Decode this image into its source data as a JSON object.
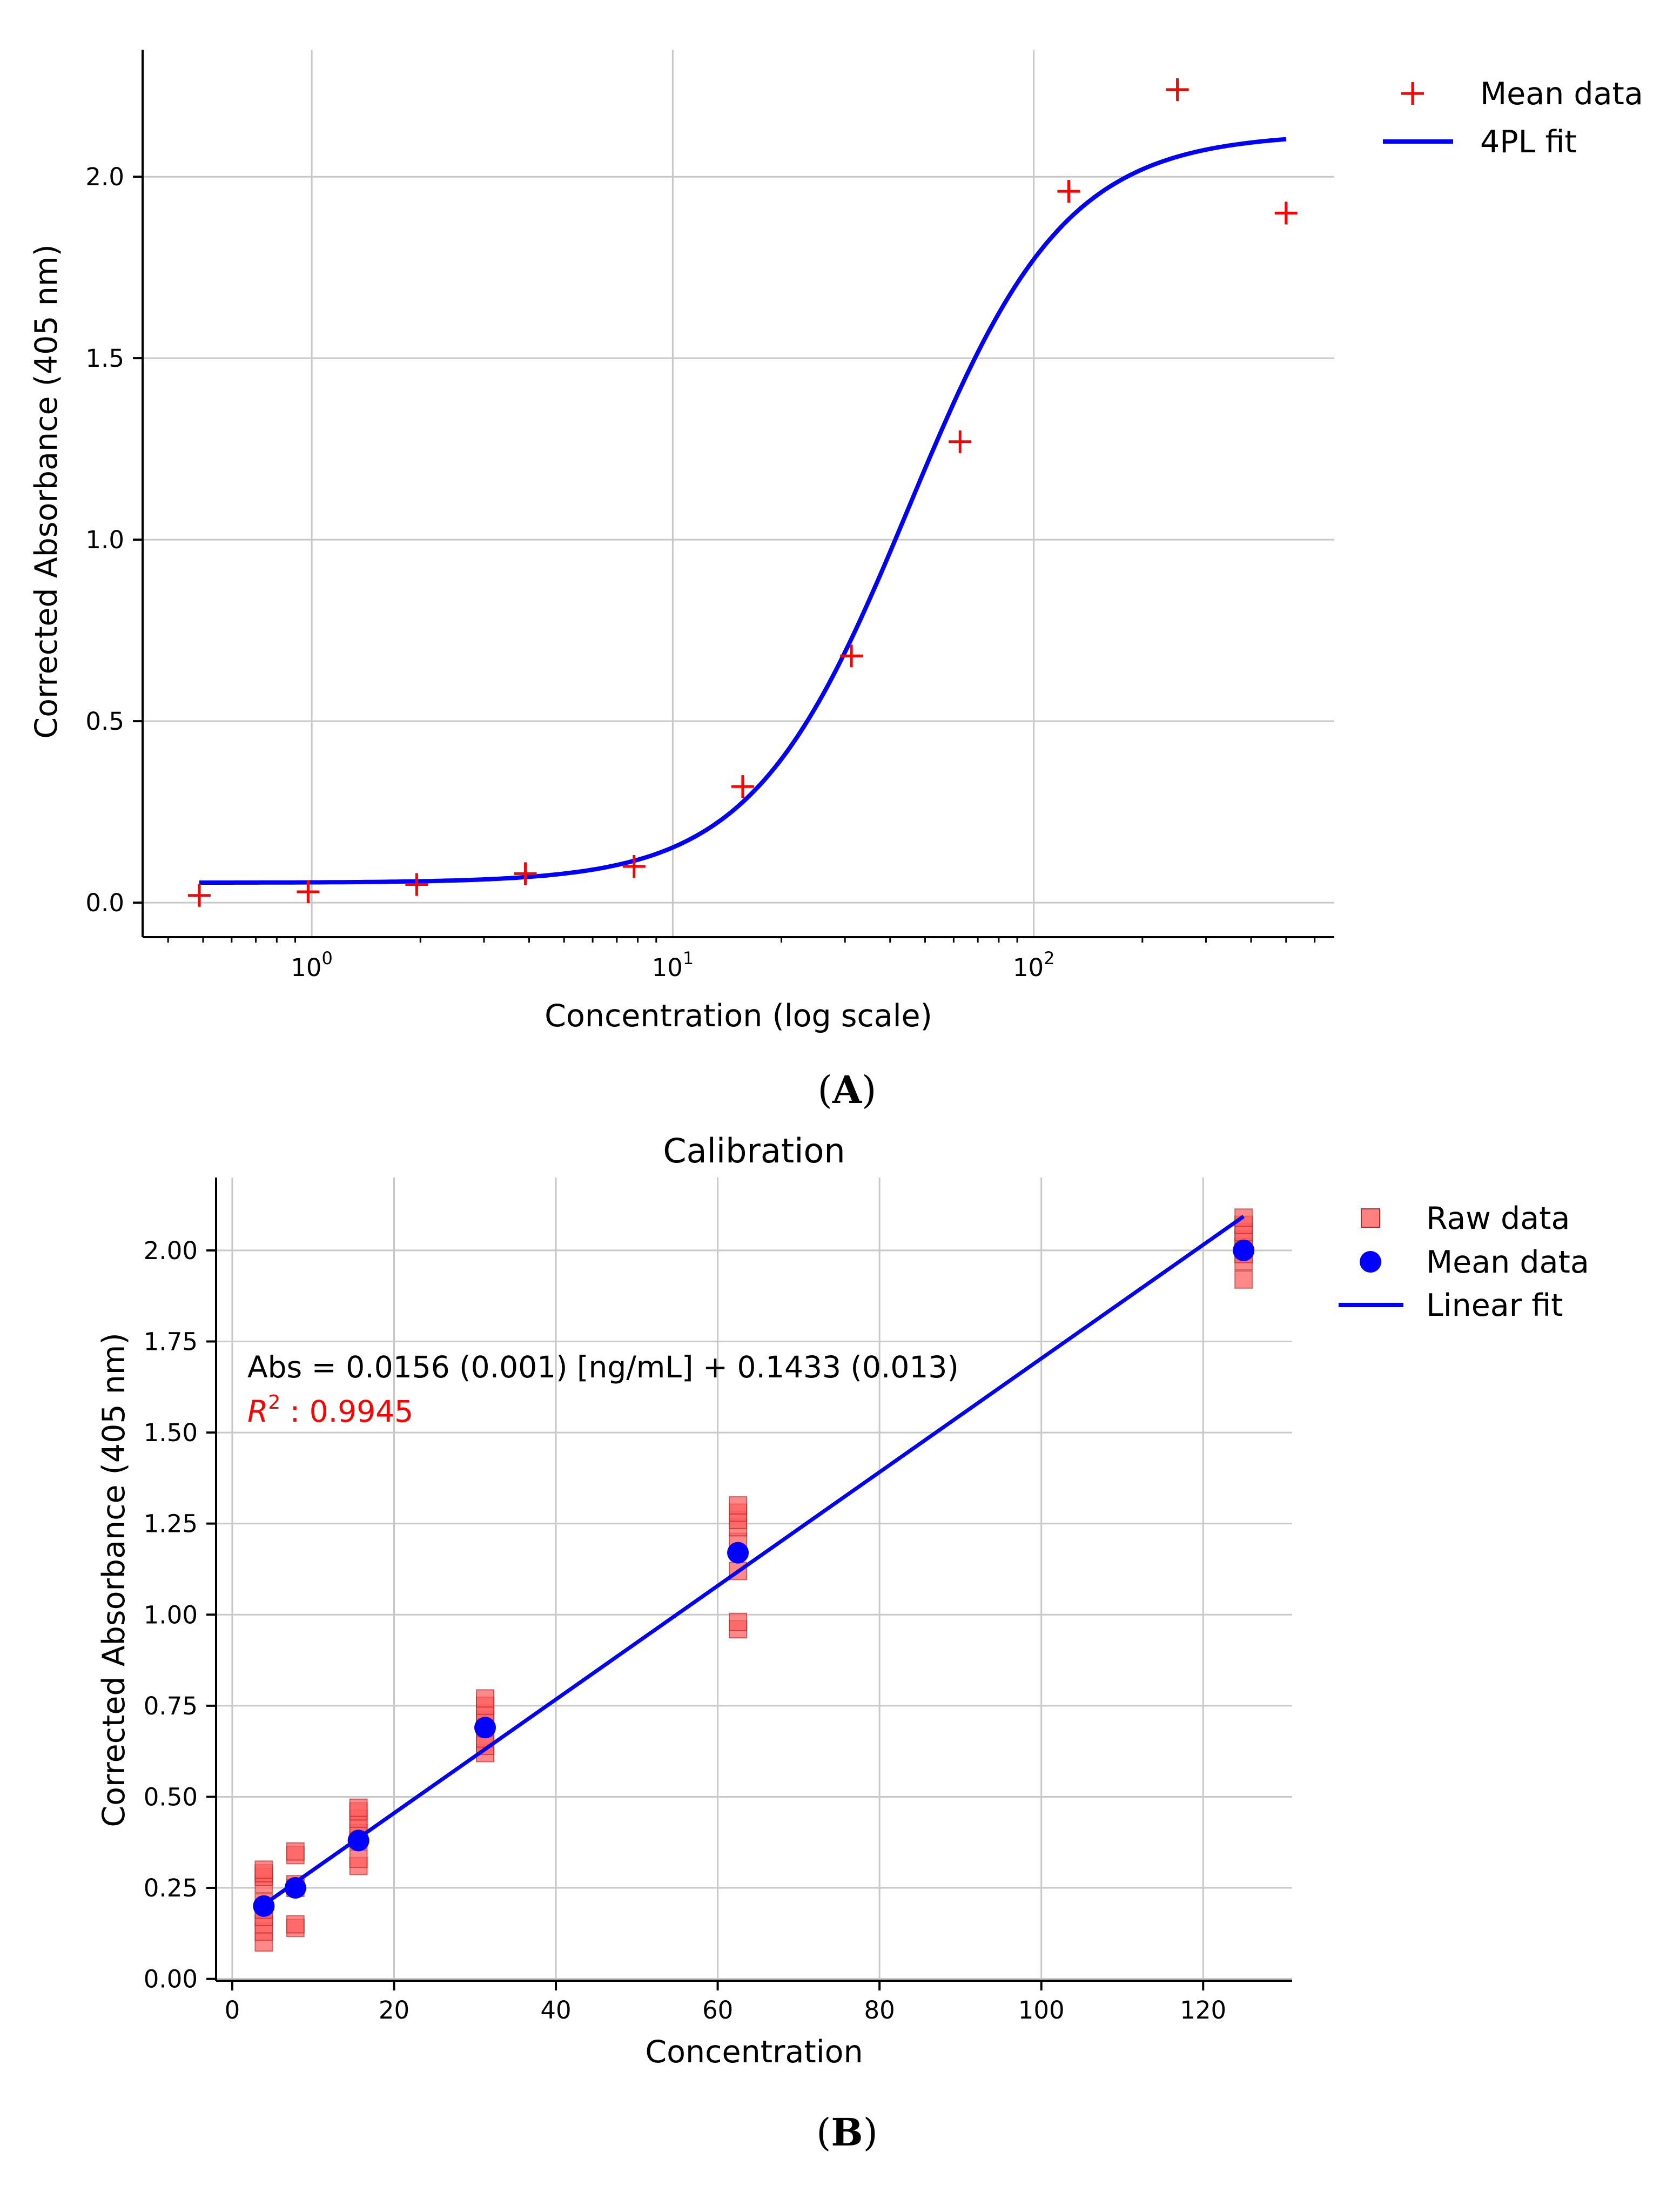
{
  "chart_data": [
    {
      "panel": "A",
      "type": "scatter",
      "title": "",
      "xlabel": "Concentration (log scale)",
      "ylabel": "Corrected Absorbance (405 nm)",
      "xscale": "log",
      "xlim": [
        0.34,
        680
      ],
      "ylim": [
        -0.095,
        2.35
      ],
      "xticks": [
        {
          "base": "10",
          "exp": "0",
          "value": 1
        },
        {
          "base": "10",
          "exp": "1",
          "value": 10
        },
        {
          "base": "10",
          "exp": "2",
          "value": 100
        }
      ],
      "yticks": [
        "0.0",
        "0.5",
        "1.0",
        "1.5",
        "2.0"
      ],
      "grid": true,
      "legend": {
        "position": "top-right outside",
        "entries": [
          "Mean data",
          "4PL fit"
        ]
      },
      "series": [
        {
          "name": "Mean data",
          "kind": "scatter",
          "marker": "+",
          "color": "#ff0000",
          "x": [
            0.488,
            0.977,
            1.953,
            3.906,
            7.8125,
            15.625,
            31.25,
            62.5,
            125,
            250,
            500
          ],
          "y": [
            0.02,
            0.03,
            0.05,
            0.08,
            0.1,
            0.32,
            0.68,
            1.27,
            1.96,
            2.24,
            1.9
          ]
        },
        {
          "name": "4PL fit",
          "kind": "line",
          "color": "#0000ff",
          "model": "4PL",
          "params": {
            "bottom": 0.055,
            "top": 2.12,
            "ec50": 45,
            "hill": 2.0
          },
          "x_range": [
            0.488,
            500
          ]
        }
      ]
    },
    {
      "panel": "B",
      "type": "scatter",
      "title": "Calibration",
      "xlabel": "Concentration",
      "ylabel": "Corrected Absorbance (405 nm)",
      "xlim": [
        -2,
        131
      ],
      "ylim": [
        -0.005,
        2.2
      ],
      "xticks": [
        "0",
        "20",
        "40",
        "60",
        "80",
        "100",
        "120"
      ],
      "yticks": [
        "0.00",
        "0.25",
        "0.50",
        "0.75",
        "1.00",
        "1.25",
        "1.50",
        "1.75",
        "2.00"
      ],
      "grid": true,
      "legend": {
        "position": "top-right outside",
        "entries": [
          "Raw data",
          "Mean data",
          "Linear fit"
        ]
      },
      "annotations": {
        "equation": "Abs = 0.0156 (0.001) [ng/mL] + 0.1433 (0.013)",
        "r2_label": "R",
        "r2_sup": "2",
        "r2_value": " : 0.9945"
      },
      "series": [
        {
          "name": "Raw data",
          "kind": "scatter",
          "marker": "square",
          "color": "#ff6060",
          "x": [
            3.9,
            3.9,
            3.9,
            3.9,
            3.9,
            3.9,
            3.9,
            3.9,
            3.9,
            3.9,
            7.8,
            7.8,
            7.8,
            7.8,
            7.8,
            7.8,
            15.6,
            15.6,
            15.6,
            15.6,
            15.6,
            15.6,
            15.6,
            15.6,
            31.25,
            31.25,
            31.25,
            31.25,
            31.25,
            31.25,
            31.25,
            31.25,
            62.5,
            62.5,
            62.5,
            62.5,
            62.5,
            62.5,
            62.5,
            62.5,
            125,
            125,
            125,
            125,
            125,
            125,
            125,
            125
          ],
          "y": [
            0.1,
            0.13,
            0.15,
            0.17,
            0.19,
            0.21,
            0.26,
            0.28,
            0.29,
            0.3,
            0.14,
            0.15,
            0.25,
            0.26,
            0.34,
            0.35,
            0.31,
            0.33,
            0.38,
            0.4,
            0.42,
            0.44,
            0.46,
            0.47,
            0.62,
            0.64,
            0.66,
            0.69,
            0.71,
            0.73,
            0.75,
            0.77,
            0.96,
            0.98,
            1.12,
            1.2,
            1.24,
            1.26,
            1.28,
            1.3,
            1.92,
            1.97,
            1.99,
            2.01,
            2.03,
            2.05,
            2.07,
            2.09
          ]
        },
        {
          "name": "Mean data",
          "kind": "scatter",
          "marker": "circle",
          "color": "#0000ff",
          "x": [
            3.9,
            7.8,
            15.6,
            31.25,
            62.5,
            125
          ],
          "y": [
            0.2,
            0.25,
            0.38,
            0.69,
            1.17,
            2.0
          ]
        },
        {
          "name": "Linear fit",
          "kind": "line",
          "color": "#0000ff",
          "slope": 0.0156,
          "intercept": 0.1433,
          "x_range": [
            3.9,
            125
          ]
        }
      ]
    }
  ],
  "panel_labels": {
    "a": "A",
    "b": "B"
  }
}
